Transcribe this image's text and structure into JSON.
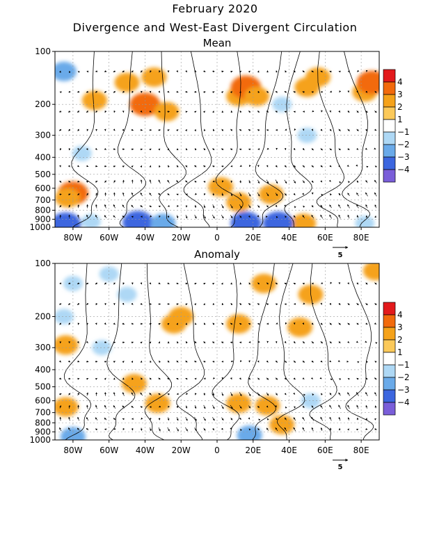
{
  "title_line1": "February 2020",
  "title_line2": "Divergence and West-East Divergent Circulation",
  "vector_scale_label": "5",
  "legend": {
    "levels": [
      "4",
      "3",
      "2",
      "1",
      "−1",
      "−2",
      "−3",
      "−4"
    ],
    "colors": [
      "#e31a1c",
      "#f26a0c",
      "#f5a21a",
      "#fbc95a",
      "#ffffff",
      "#aed8f5",
      "#6aaae9",
      "#3c66df",
      "#7a5ed9"
    ]
  },
  "chart_data": [
    {
      "type": "heatmap",
      "title": "Mean",
      "x_ticks": [
        "80W",
        "60W",
        "40W",
        "20W",
        "0",
        "20E",
        "40E",
        "60E",
        "80E"
      ],
      "x_tick_values": [
        -80,
        -60,
        -40,
        -20,
        0,
        20,
        40,
        60,
        80
      ],
      "xlim": [
        -90,
        90
      ],
      "y_ticks": [
        "100",
        "200",
        "300",
        "400",
        "500",
        "600",
        "700",
        "800",
        "900",
        "1000"
      ],
      "y_tick_values": [
        100,
        200,
        300,
        400,
        500,
        600,
        700,
        800,
        900,
        1000
      ],
      "ylim": [
        1000,
        100
      ],
      "y_scale": "log",
      "grid": true,
      "blobs": [
        {
          "lon": -85,
          "p": 130,
          "value": -2
        },
        {
          "lon": -68,
          "p": 190,
          "value": 2
        },
        {
          "lon": -50,
          "p": 150,
          "value": 2
        },
        {
          "lon": -40,
          "p": 200,
          "value": 3
        },
        {
          "lon": -35,
          "p": 140,
          "value": 2
        },
        {
          "lon": -28,
          "p": 220,
          "value": 2
        },
        {
          "lon": 12,
          "p": 180,
          "value": 2
        },
        {
          "lon": 16,
          "p": 160,
          "value": 3
        },
        {
          "lon": 22,
          "p": 180,
          "value": 2
        },
        {
          "lon": 36,
          "p": 200,
          "value": -1
        },
        {
          "lon": 50,
          "p": 160,
          "value": 2
        },
        {
          "lon": 56,
          "p": 140,
          "value": 2
        },
        {
          "lon": 82,
          "p": 170,
          "value": 2
        },
        {
          "lon": 86,
          "p": 150,
          "value": 3
        },
        {
          "lon": 50,
          "p": 300,
          "value": -1
        },
        {
          "lon": -75,
          "p": 380,
          "value": -1
        },
        {
          "lon": -80,
          "p": 640,
          "value": 3
        },
        {
          "lon": -83,
          "p": 680,
          "value": 2
        },
        {
          "lon": 12,
          "p": 720,
          "value": 2
        },
        {
          "lon": 30,
          "p": 650,
          "value": 2
        },
        {
          "lon": 2,
          "p": 590,
          "value": 2
        },
        {
          "lon": 48,
          "p": 950,
          "value": 2
        },
        {
          "lon": -84,
          "p": 960,
          "value": -3
        },
        {
          "lon": -70,
          "p": 930,
          "value": -1
        },
        {
          "lon": -44,
          "p": 940,
          "value": -3
        },
        {
          "lon": -30,
          "p": 950,
          "value": -2
        },
        {
          "lon": 16,
          "p": 950,
          "value": -3
        },
        {
          "lon": 34,
          "p": 950,
          "value": -3
        },
        {
          "lon": 82,
          "p": 950,
          "value": -1
        }
      ]
    },
    {
      "type": "heatmap",
      "title": "Anomaly",
      "x_ticks": [
        "80W",
        "60W",
        "40W",
        "20W",
        "0",
        "20E",
        "40E",
        "60E",
        "80E"
      ],
      "x_tick_values": [
        -80,
        -60,
        -40,
        -20,
        0,
        20,
        40,
        60,
        80
      ],
      "xlim": [
        -90,
        90
      ],
      "y_ticks": [
        "100",
        "200",
        "300",
        "400",
        "500",
        "600",
        "700",
        "800",
        "900",
        "1000"
      ],
      "y_tick_values": [
        100,
        200,
        300,
        400,
        500,
        600,
        700,
        800,
        900,
        1000
      ],
      "ylim": [
        1000,
        100
      ],
      "y_scale": "log",
      "grid": true,
      "blobs": [
        {
          "lon": -80,
          "p": 130,
          "value": -1
        },
        {
          "lon": -60,
          "p": 115,
          "value": -1
        },
        {
          "lon": -50,
          "p": 150,
          "value": -1
        },
        {
          "lon": -85,
          "p": 200,
          "value": -1
        },
        {
          "lon": -24,
          "p": 220,
          "value": 2
        },
        {
          "lon": -20,
          "p": 200,
          "value": 2
        },
        {
          "lon": 12,
          "p": 220,
          "value": 2
        },
        {
          "lon": 26,
          "p": 130,
          "value": 2
        },
        {
          "lon": 52,
          "p": 150,
          "value": 2
        },
        {
          "lon": 46,
          "p": 230,
          "value": 2
        },
        {
          "lon": 88,
          "p": 110,
          "value": 2
        },
        {
          "lon": -84,
          "p": 290,
          "value": 2
        },
        {
          "lon": -64,
          "p": 300,
          "value": -1
        },
        {
          "lon": -46,
          "p": 480,
          "value": 2
        },
        {
          "lon": -33,
          "p": 620,
          "value": 2
        },
        {
          "lon": -84,
          "p": 650,
          "value": 2
        },
        {
          "lon": 12,
          "p": 620,
          "value": 2
        },
        {
          "lon": 28,
          "p": 640,
          "value": 2
        },
        {
          "lon": 36,
          "p": 820,
          "value": 2
        },
        {
          "lon": 52,
          "p": 600,
          "value": -1
        },
        {
          "lon": 18,
          "p": 940,
          "value": -2
        },
        {
          "lon": -80,
          "p": 960,
          "value": -2
        }
      ]
    }
  ]
}
